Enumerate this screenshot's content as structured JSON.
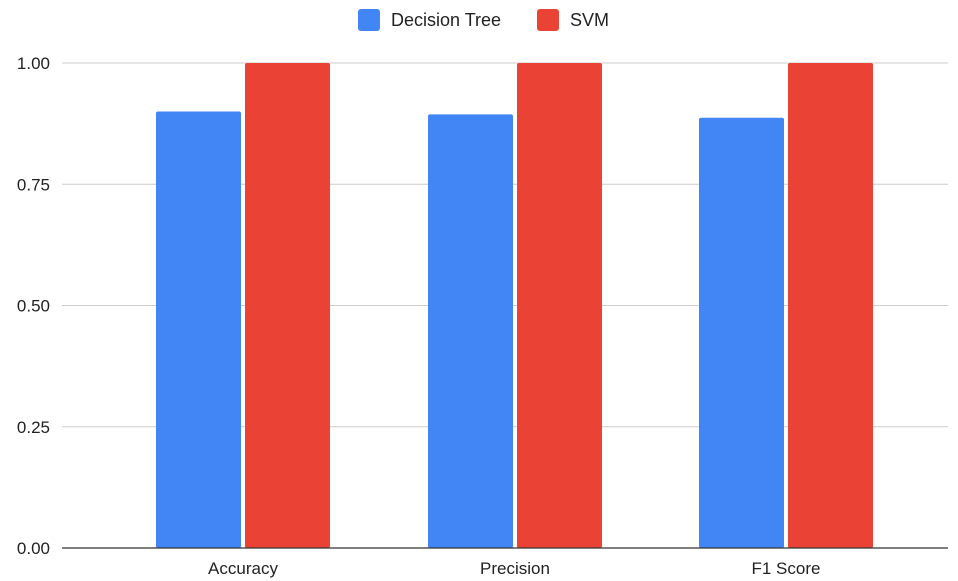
{
  "chart_data": {
    "type": "bar",
    "categories": [
      "Accuracy",
      "Precision",
      "F1 Score"
    ],
    "series": [
      {
        "name": "Decision Tree",
        "color": "#4285f4",
        "values": [
          0.9,
          0.894,
          0.887
        ]
      },
      {
        "name": "SVM",
        "color": "#ea4335",
        "values": [
          1.0,
          1.0,
          1.0
        ]
      }
    ],
    "title": "",
    "xlabel": "",
    "ylabel": "",
    "ylim": [
      0,
      1
    ],
    "yticks": [
      "0.00",
      "0.25",
      "0.50",
      "0.75",
      "1.00"
    ],
    "ytick_values": [
      0,
      0.25,
      0.5,
      0.75,
      1.0
    ],
    "grid": true,
    "legend_position": "top-center"
  }
}
